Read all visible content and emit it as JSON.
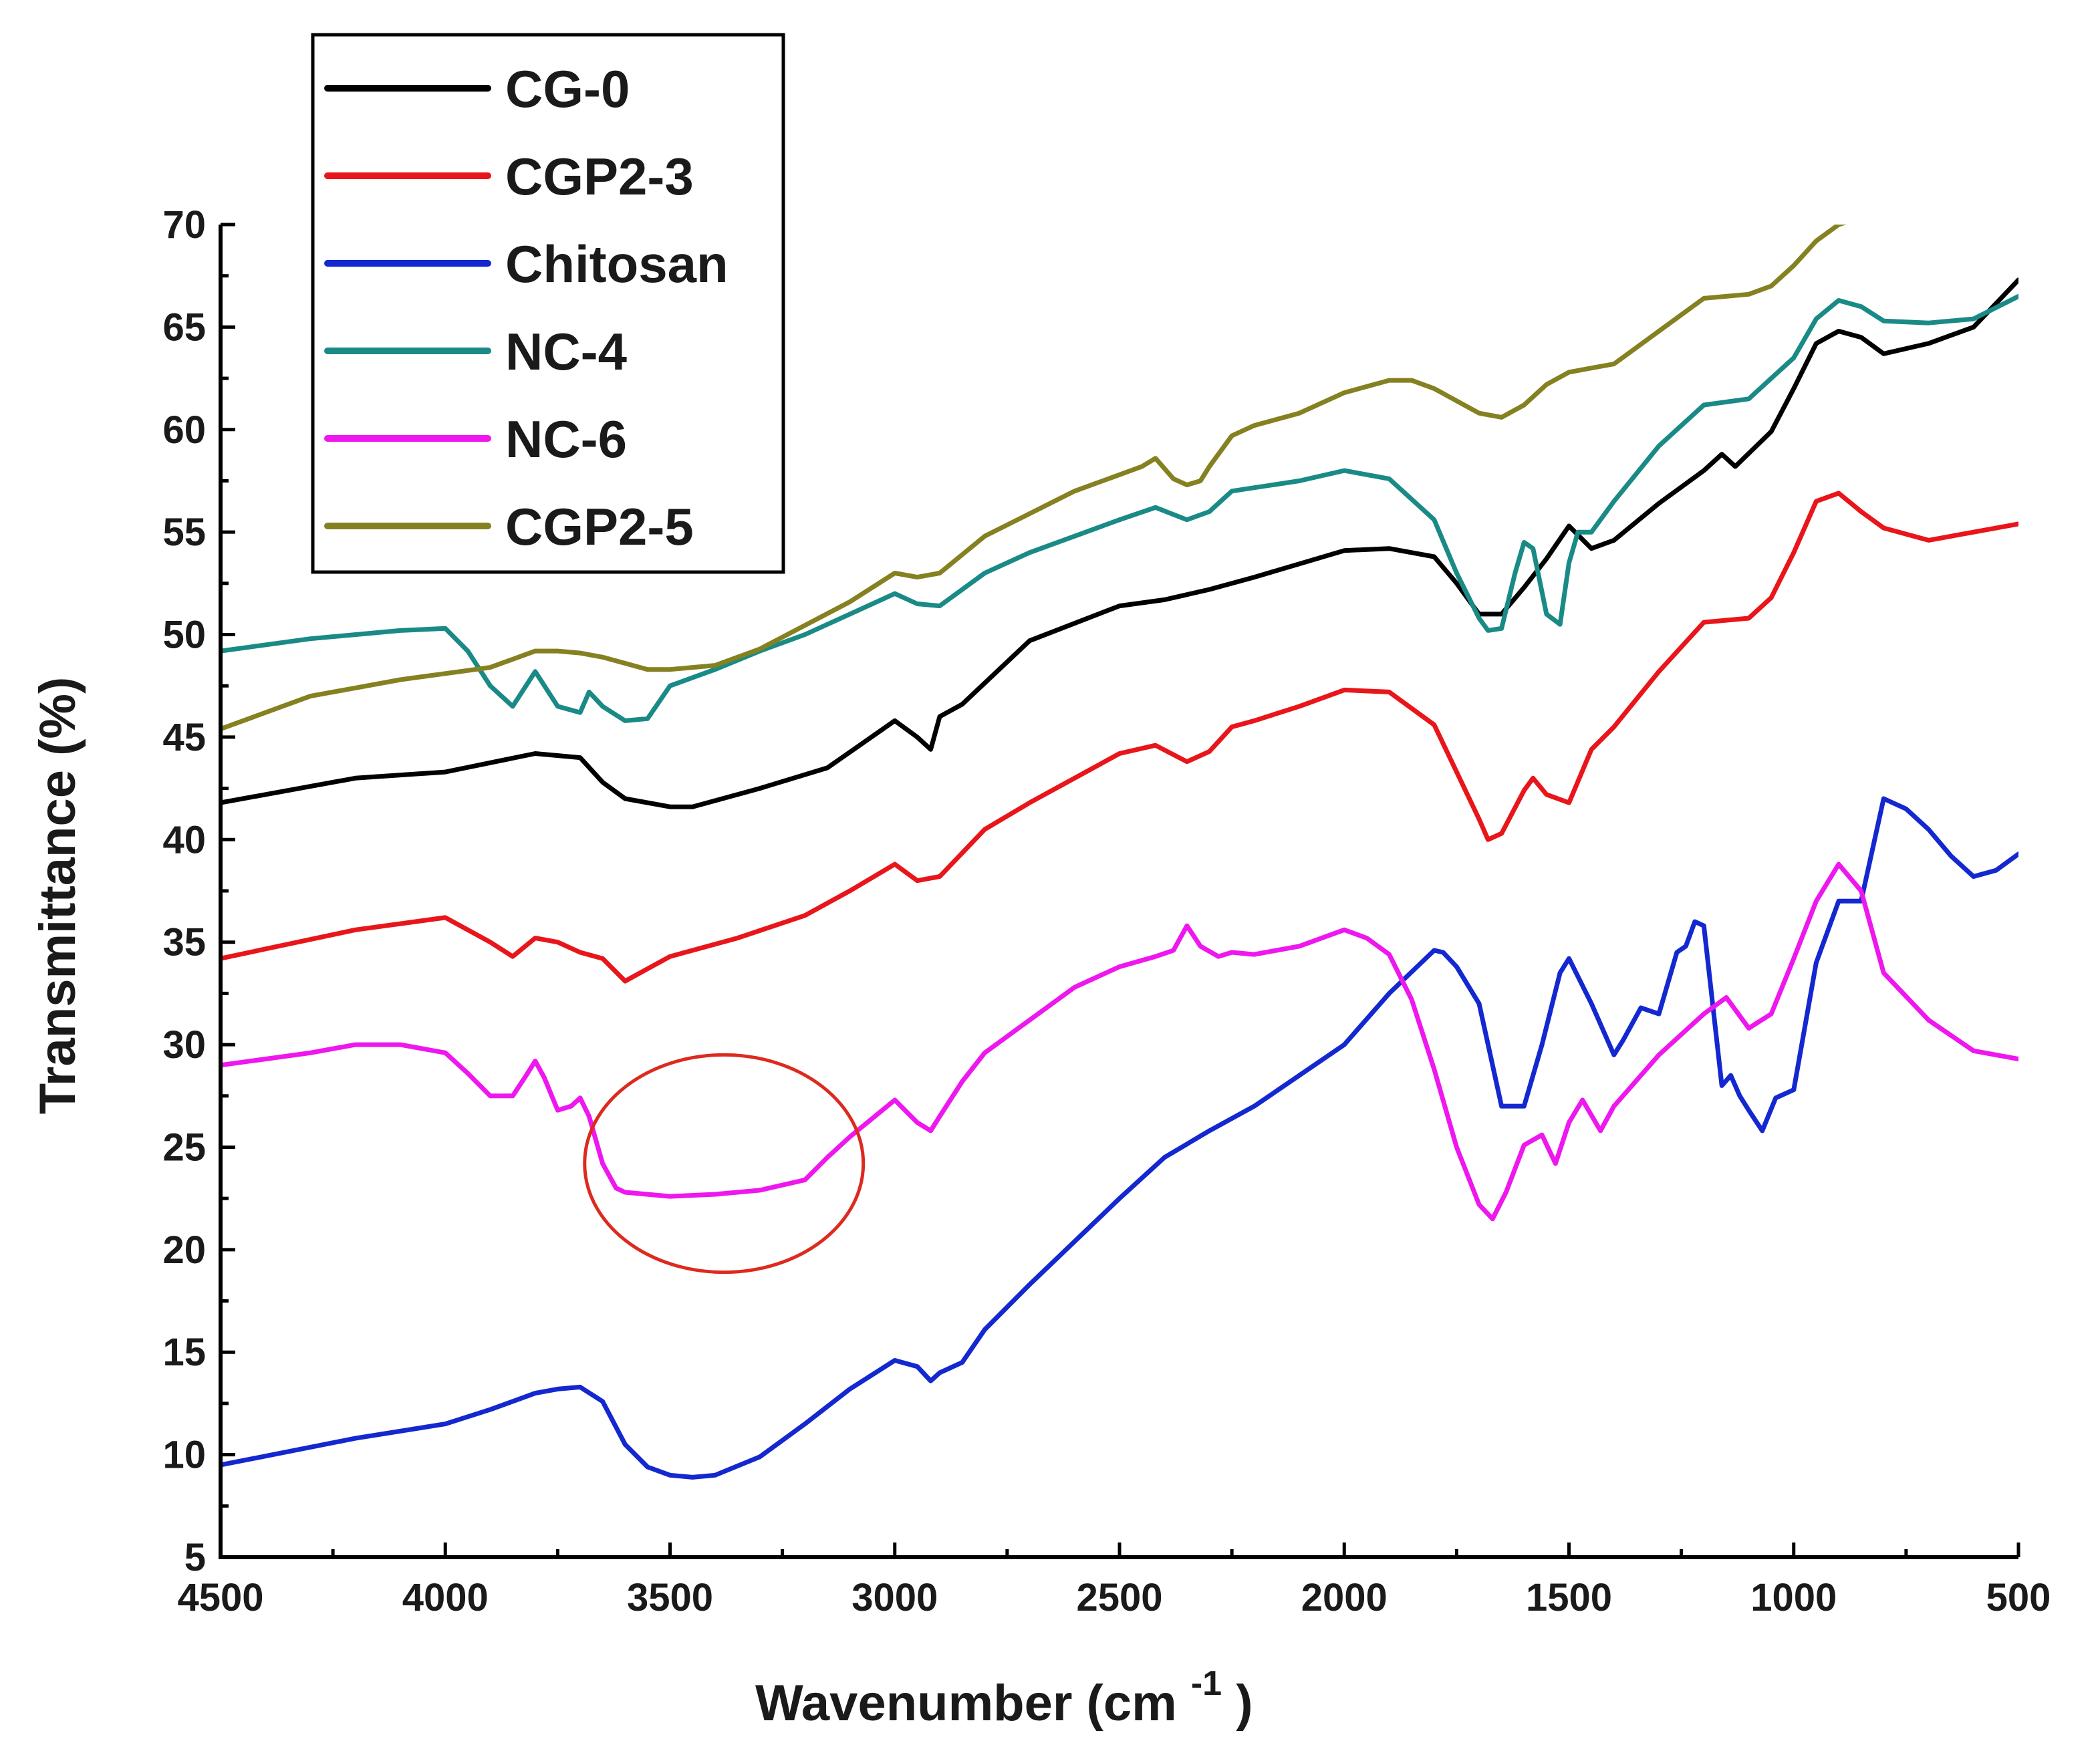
{
  "chart_data": {
    "type": "line",
    "title": "",
    "xlabel": "Wavenumber (cm",
    "xlabel_superscript": "-1",
    "xlabel_close": ")",
    "ylabel": "Transmittance (%)",
    "xlim": [
      4500,
      500
    ],
    "ylim": [
      5,
      70
    ],
    "x_ticks": [
      4500,
      4000,
      3500,
      3000,
      2500,
      2000,
      1500,
      1000,
      500
    ],
    "y_ticks": [
      5,
      10,
      15,
      20,
      25,
      30,
      35,
      40,
      45,
      50,
      55,
      60,
      65,
      70
    ],
    "grid": false,
    "legend_position": "top-left",
    "annotation": {
      "type": "ellipse",
      "center": [
        3380,
        24.2
      ],
      "radius_x": 310,
      "radius_y": 5.3,
      "color": "#dd2a1f"
    },
    "series": [
      {
        "name": "CG-0",
        "color": "#000000",
        "x": [
          4500,
          4200,
          4000,
          3800,
          3700,
          3650,
          3600,
          3500,
          3450,
          3300,
          3150,
          3000,
          2950,
          2920,
          2900,
          2850,
          2700,
          2500,
          2400,
          2380,
          2300,
          2200,
          2000,
          1900,
          1800,
          1750,
          1700,
          1650,
          1600,
          1550,
          1500,
          1450,
          1400,
          1300,
          1200,
          1160,
          1130,
          1050,
          1000,
          950,
          900,
          850,
          800,
          700,
          600,
          500
        ],
        "y": [
          41.8,
          43,
          43.3,
          44.2,
          44,
          42.8,
          42,
          41.6,
          41.6,
          42.5,
          43.5,
          45.8,
          45,
          44.4,
          46,
          46.6,
          49.7,
          51.4,
          51.7,
          51.8,
          52.2,
          52.8,
          54.1,
          54.2,
          53.8,
          52.5,
          51,
          51,
          52.3,
          53.7,
          55.3,
          54.2,
          54.6,
          56.4,
          58,
          58.8,
          58.2,
          59.9,
          62,
          64.2,
          64.8,
          64.5,
          63.7,
          64.2,
          65,
          67.3
        ]
      },
      {
        "name": "CGP2-3",
        "color": "#e8161b",
        "x": [
          4500,
          4200,
          4000,
          3900,
          3850,
          3800,
          3750,
          3700,
          3650,
          3600,
          3550,
          3500,
          3350,
          3200,
          3100,
          3000,
          2950,
          2900,
          2800,
          2700,
          2500,
          2420,
          2350,
          2300,
          2250,
          2200,
          2100,
          2000,
          1900,
          1800,
          1700,
          1680,
          1650,
          1600,
          1580,
          1550,
          1500,
          1450,
          1400,
          1300,
          1200,
          1100,
          1050,
          1000,
          950,
          900,
          850,
          800,
          700,
          600,
          500
        ],
        "y": [
          34.2,
          35.6,
          36.2,
          35,
          34.3,
          35.2,
          35,
          34.5,
          34.2,
          33.1,
          33.7,
          34.3,
          35.2,
          36.3,
          37.5,
          38.8,
          38,
          38.2,
          40.5,
          41.8,
          44.2,
          44.6,
          43.8,
          44.3,
          45.5,
          45.8,
          46.5,
          47.3,
          47.2,
          45.6,
          41,
          40,
          40.3,
          42.4,
          43,
          42.2,
          41.8,
          44.4,
          45.5,
          48.2,
          50.6,
          50.8,
          51.8,
          54,
          56.5,
          56.9,
          56,
          55.2,
          54.6,
          55,
          55.4
        ]
      },
      {
        "name": "Chitosan",
        "color": "#1428d0",
        "x": [
          4500,
          4200,
          4000,
          3900,
          3800,
          3750,
          3700,
          3650,
          3600,
          3550,
          3500,
          3450,
          3400,
          3300,
          3200,
          3100,
          3000,
          2950,
          2920,
          2900,
          2850,
          2800,
          2700,
          2500,
          2400,
          2300,
          2200,
          2000,
          1900,
          1800,
          1780,
          1750,
          1700,
          1650,
          1600,
          1560,
          1520,
          1500,
          1450,
          1400,
          1380,
          1340,
          1300,
          1260,
          1240,
          1220,
          1200,
          1160,
          1140,
          1120,
          1100,
          1070,
          1040,
          1000,
          950,
          900,
          850,
          800,
          750,
          700,
          650,
          600,
          550,
          500
        ],
        "y": [
          9.5,
          10.8,
          11.5,
          12.2,
          13,
          13.2,
          13.3,
          12.6,
          10.5,
          9.4,
          9,
          8.9,
          9,
          9.9,
          11.5,
          13.2,
          14.6,
          14.3,
          13.6,
          14,
          14.5,
          16.1,
          18.3,
          22.5,
          24.5,
          25.8,
          27,
          30,
          32.5,
          34.6,
          34.5,
          33.8,
          32,
          27,
          27,
          30,
          33.5,
          34.2,
          32,
          29.5,
          30.2,
          31.8,
          31.5,
          34.5,
          34.8,
          36,
          35.8,
          28,
          28.5,
          27.5,
          26.8,
          25.8,
          27.4,
          27.8,
          34,
          37,
          37,
          42,
          41.5,
          40.5,
          39.2,
          38.2,
          38.5,
          39.3
        ]
      },
      {
        "name": "NC-4",
        "color": "#1a8a86",
        "x": [
          4500,
          4300,
          4100,
          4000,
          3950,
          3900,
          3850,
          3800,
          3750,
          3700,
          3680,
          3650,
          3600,
          3550,
          3500,
          3400,
          3300,
          3200,
          3100,
          3000,
          2950,
          2900,
          2800,
          2700,
          2500,
          2420,
          2350,
          2300,
          2250,
          2100,
          2000,
          1900,
          1800,
          1750,
          1700,
          1680,
          1650,
          1620,
          1600,
          1580,
          1550,
          1520,
          1500,
          1480,
          1450,
          1400,
          1300,
          1200,
          1100,
          1050,
          1000,
          950,
          900,
          850,
          800,
          700,
          600,
          500
        ],
        "y": [
          49.2,
          49.8,
          50.2,
          50.3,
          49.2,
          47.5,
          46.5,
          48.2,
          46.5,
          46.2,
          47.2,
          46.5,
          45.8,
          45.9,
          47.5,
          48.3,
          49.2,
          50,
          51,
          52,
          51.5,
          51.4,
          53,
          54,
          55.6,
          56.2,
          55.6,
          56,
          57,
          57.5,
          58,
          57.6,
          55.6,
          53,
          50.8,
          50.2,
          50.3,
          53,
          54.5,
          54.2,
          51,
          50.5,
          53.5,
          55,
          55,
          56.5,
          59.2,
          61.2,
          61.5,
          62.5,
          63.5,
          65.4,
          66.3,
          66,
          65.3,
          65.2,
          65.4,
          66.5
        ]
      },
      {
        "name": "NC-6",
        "color": "#ee17ee",
        "x": [
          4500,
          4300,
          4200,
          4100,
          4000,
          3950,
          3900,
          3850,
          3820,
          3800,
          3780,
          3750,
          3720,
          3700,
          3680,
          3650,
          3620,
          3600,
          3500,
          3400,
          3300,
          3200,
          3150,
          3100,
          3000,
          2950,
          2920,
          2900,
          2850,
          2800,
          2700,
          2600,
          2500,
          2420,
          2380,
          2350,
          2320,
          2280,
          2250,
          2200,
          2100,
          2000,
          1950,
          1900,
          1850,
          1800,
          1750,
          1700,
          1670,
          1640,
          1600,
          1560,
          1530,
          1500,
          1470,
          1430,
          1400,
          1300,
          1200,
          1150,
          1100,
          1050,
          1000,
          950,
          900,
          850,
          800,
          700,
          600,
          500
        ],
        "y": [
          29,
          29.6,
          30,
          30,
          29.6,
          28.6,
          27.5,
          27.5,
          28.5,
          29.2,
          28.4,
          26.8,
          27,
          27.4,
          26.5,
          24.2,
          23,
          22.8,
          22.6,
          22.7,
          22.9,
          23.4,
          24.5,
          25.5,
          27.3,
          26.2,
          25.8,
          26.5,
          28.2,
          29.6,
          31.2,
          32.8,
          33.8,
          34.3,
          34.6,
          35.8,
          34.8,
          34.3,
          34.5,
          34.4,
          34.8,
          35.6,
          35.2,
          34.4,
          32.2,
          28.8,
          25,
          22.2,
          21.5,
          22.8,
          25.1,
          25.6,
          24.2,
          26.2,
          27.3,
          25.8,
          27,
          29.5,
          31.5,
          32.3,
          30.8,
          31.5,
          34.2,
          37,
          38.8,
          37.5,
          33.5,
          31.2,
          29.7,
          29.3
        ]
      },
      {
        "name": "CGP2-5",
        "color": "#858121",
        "x": [
          4500,
          4300,
          4100,
          4000,
          3900,
          3850,
          3800,
          3750,
          3700,
          3650,
          3600,
          3550,
          3500,
          3400,
          3300,
          3100,
          3000,
          2950,
          2900,
          2800,
          2600,
          2500,
          2450,
          2420,
          2380,
          2350,
          2320,
          2300,
          2250,
          2200,
          2100,
          2000,
          1900,
          1850,
          1800,
          1750,
          1700,
          1650,
          1600,
          1550,
          1500,
          1450,
          1400,
          1300,
          1200,
          1100,
          1050,
          1000,
          950,
          900,
          870
        ],
        "y": [
          45.4,
          47,
          47.8,
          48.1,
          48.4,
          48.8,
          49.2,
          49.2,
          49.1,
          48.9,
          48.6,
          48.3,
          48.3,
          48.5,
          49.3,
          51.6,
          53,
          52.8,
          53,
          54.8,
          57,
          57.8,
          58.2,
          58.6,
          57.6,
          57.3,
          57.5,
          58.2,
          59.7,
          60.2,
          60.8,
          61.8,
          62.4,
          62.4,
          62,
          61.4,
          60.8,
          60.6,
          61.2,
          62.2,
          62.8,
          63,
          63.2,
          64.8,
          66.4,
          66.6,
          67,
          68,
          69.2,
          70,
          70.2
        ]
      }
    ]
  }
}
